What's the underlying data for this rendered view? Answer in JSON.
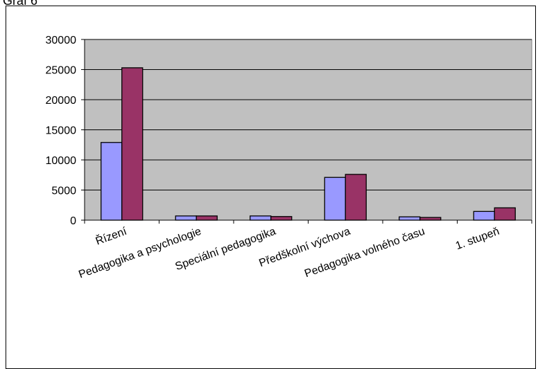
{
  "page": {
    "heading": "Graf 6"
  },
  "colors": {
    "plot_background": "#c0c0c0",
    "series_1": "#9999ff",
    "series_2": "#993366",
    "gridline": "#000000"
  },
  "chart_data": {
    "type": "bar",
    "title": "",
    "xlabel": "",
    "ylabel": "",
    "ylim": [
      0,
      30000
    ],
    "yticks": [
      "0",
      "5000",
      "10000",
      "15000",
      "20000",
      "25000",
      "30000"
    ],
    "grid": true,
    "legend": "none",
    "categories": [
      "Řízení",
      "Pedagogika a psychologie",
      "Speciální pedagogika",
      "Předškolní výchova",
      "Pedagogika volného času",
      "1. stupeň"
    ],
    "series": [
      {
        "values": [
          12900,
          700,
          700,
          7100,
          550,
          1450
        ]
      },
      {
        "values": [
          25300,
          700,
          600,
          7600,
          450,
          2050
        ]
      }
    ]
  }
}
